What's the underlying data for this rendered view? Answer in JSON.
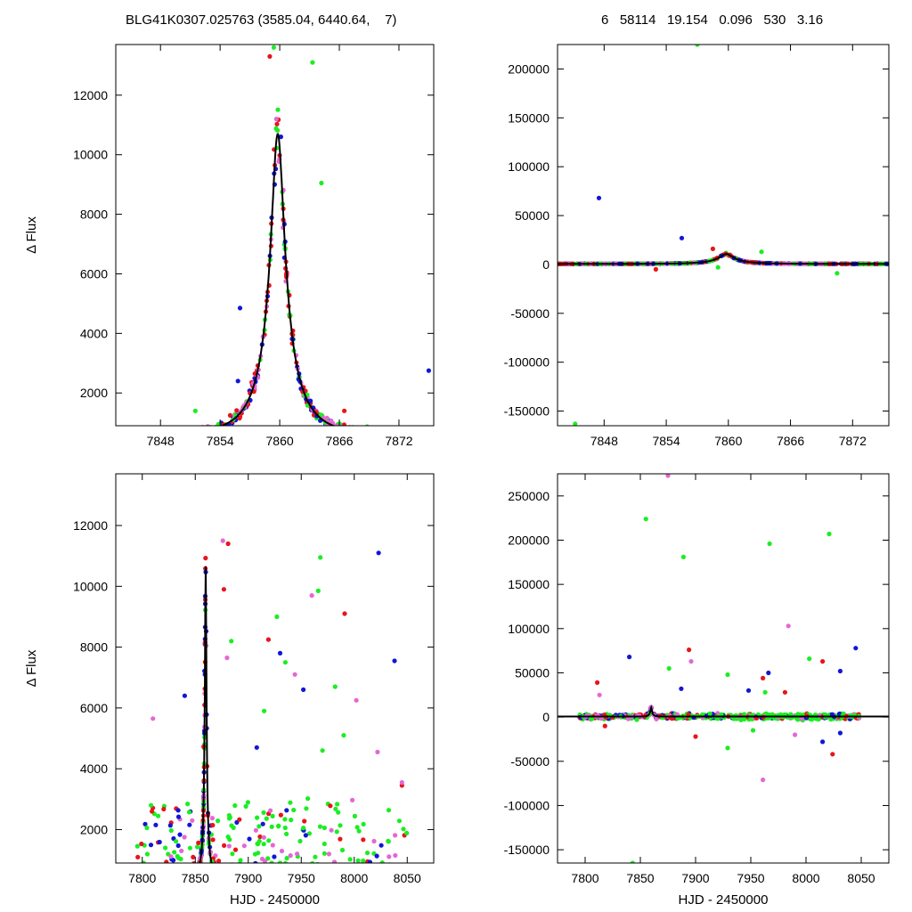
{
  "header": {
    "left": "BLG41K0307.025763 (3585.04, 6440.64,    7)",
    "right": "6   58114   19.154   0.096   530   3.16"
  },
  "colors": {
    "red": "#e8141c",
    "magenta": "#e467d4",
    "green": "#1aee22",
    "blue": "#1216d6",
    "model": "#000000"
  },
  "chart_data": [
    {
      "type": "scatter",
      "panel": "top-left",
      "xlabel": "",
      "ylabel": "Δ Flux",
      "xlim": [
        7843.5,
        7875.5
      ],
      "ylim": [
        900,
        13700
      ],
      "xticks": [
        7848,
        7854,
        7860,
        7866,
        7872
      ],
      "yticks": [
        2000,
        4000,
        6000,
        8000,
        10000,
        12000
      ],
      "grid": false,
      "model": {
        "type": "line",
        "color": "#000000",
        "t0": 7859.8,
        "peak": 10700,
        "tE": 3.8,
        "baseline": 600
      },
      "series_colors": [
        "red",
        "magenta",
        "green",
        "blue"
      ],
      "outliers": [
        {
          "series": "red",
          "x": 7859.0,
          "y": 13300
        },
        {
          "series": "green",
          "x": 7859.4,
          "y": 13600
        },
        {
          "series": "green",
          "x": 7863.3,
          "y": 13100
        },
        {
          "series": "blue",
          "x": 7856.0,
          "y": 4850
        },
        {
          "series": "blue",
          "x": 7855.8,
          "y": 2400
        },
        {
          "series": "green",
          "x": 7851.5,
          "y": 1400
        },
        {
          "series": "green",
          "x": 7864.2,
          "y": 9050
        },
        {
          "series": "blue",
          "x": 7875.0,
          "y": 2750
        },
        {
          "series": "red",
          "x": 7866.5,
          "y": 1400
        }
      ]
    },
    {
      "type": "scatter",
      "panel": "top-right",
      "xlabel": "",
      "ylabel": "",
      "xlim": [
        7843.5,
        7875.5
      ],
      "ylim": [
        -165000,
        225000
      ],
      "xticks": [
        7848,
        7854,
        7860,
        7866,
        7872
      ],
      "yticks": [
        -150000,
        -100000,
        -50000,
        0,
        50000,
        100000,
        150000,
        200000
      ],
      "grid": false,
      "model": {
        "type": "line",
        "color": "#000000",
        "t0": 7859.8,
        "peak": 10700,
        "tE": 3.8,
        "baseline": 600
      },
      "outliers": [
        {
          "series": "green",
          "x": 7857.0,
          "y": 225000
        },
        {
          "series": "blue",
          "x": 7847.5,
          "y": 68000
        },
        {
          "series": "blue",
          "x": 7855.5,
          "y": 27000
        },
        {
          "series": "green",
          "x": 7845.2,
          "y": -163000
        },
        {
          "series": "red",
          "x": 7858.5,
          "y": 16000
        },
        {
          "series": "green",
          "x": 7859.0,
          "y": -3000
        },
        {
          "series": "red",
          "x": 7853.0,
          "y": -5000
        },
        {
          "series": "green",
          "x": 7863.2,
          "y": 13000
        },
        {
          "series": "green",
          "x": 7870.5,
          "y": -9000
        }
      ]
    },
    {
      "type": "scatter",
      "panel": "bottom-left",
      "xlabel": "HJD - 2450000",
      "ylabel": "Δ Flux",
      "xlim": [
        7775,
        8075
      ],
      "ylim": [
        900,
        13700
      ],
      "xticks": [
        7800,
        7850,
        7900,
        7950,
        8000,
        8050
      ],
      "yticks": [
        2000,
        4000,
        6000,
        8000,
        10000,
        12000
      ],
      "grid": false,
      "model": {
        "type": "line",
        "color": "#000000",
        "t0": 7859.8,
        "peak": 10700,
        "tE": 3.8,
        "baseline": 600
      },
      "outliers": [
        {
          "series": "magenta",
          "x": 7810,
          "y": 5650
        },
        {
          "series": "red",
          "x": 7877,
          "y": 9900
        },
        {
          "series": "red",
          "x": 7881,
          "y": 11400
        },
        {
          "series": "magenta",
          "x": 7876,
          "y": 11500
        },
        {
          "series": "green",
          "x": 7884,
          "y": 8200
        },
        {
          "series": "red",
          "x": 7919,
          "y": 8250
        },
        {
          "series": "green",
          "x": 7927,
          "y": 9000
        },
        {
          "series": "blue",
          "x": 7930,
          "y": 7800
        },
        {
          "series": "green",
          "x": 7968,
          "y": 10950
        },
        {
          "series": "green",
          "x": 7966,
          "y": 9850
        },
        {
          "series": "magenta",
          "x": 7960,
          "y": 9700
        },
        {
          "series": "red",
          "x": 7991,
          "y": 9100
        },
        {
          "series": "blue",
          "x": 8023,
          "y": 11100
        },
        {
          "series": "blue",
          "x": 8038,
          "y": 7550
        },
        {
          "series": "magenta",
          "x": 7944,
          "y": 7100
        },
        {
          "series": "green",
          "x": 7935,
          "y": 7500
        },
        {
          "series": "green",
          "x": 7982,
          "y": 6700
        },
        {
          "series": "magenta",
          "x": 8002,
          "y": 6250
        },
        {
          "series": "blue",
          "x": 7952,
          "y": 6600
        },
        {
          "series": "green",
          "x": 7915,
          "y": 5900
        },
        {
          "series": "blue",
          "x": 7840,
          "y": 6400
        },
        {
          "series": "magenta",
          "x": 7880,
          "y": 7650
        },
        {
          "series": "magenta",
          "x": 8022,
          "y": 4550
        },
        {
          "series": "green",
          "x": 7970,
          "y": 4600
        },
        {
          "series": "red",
          "x": 8045,
          "y": 3450
        },
        {
          "series": "magenta",
          "x": 8045,
          "y": 3550
        },
        {
          "series": "blue",
          "x": 7908,
          "y": 4700
        },
        {
          "series": "green",
          "x": 7990,
          "y": 5100
        }
      ]
    },
    {
      "type": "scatter",
      "panel": "bottom-right",
      "xlabel": "HJD - 2450000",
      "ylabel": "",
      "xlim": [
        7775,
        8075
      ],
      "ylim": [
        -165000,
        275000
      ],
      "xticks": [
        7800,
        7850,
        7900,
        7950,
        8000,
        8050
      ],
      "yticks": [
        -150000,
        -100000,
        -50000,
        0,
        50000,
        100000,
        150000,
        200000,
        250000
      ],
      "grid": false,
      "model": {
        "type": "line",
        "color": "#000000",
        "t0": 7859.8,
        "peak": 10700,
        "tE": 3.8,
        "baseline": 600
      },
      "outliers": [
        {
          "series": "magenta",
          "x": 7875,
          "y": 273000
        },
        {
          "series": "green",
          "x": 7855,
          "y": 224000
        },
        {
          "series": "green",
          "x": 8021,
          "y": 207000
        },
        {
          "series": "green",
          "x": 7967,
          "y": 196000
        },
        {
          "series": "green",
          "x": 7889,
          "y": 181000
        },
        {
          "series": "magenta",
          "x": 7984,
          "y": 103000
        },
        {
          "series": "blue",
          "x": 8045,
          "y": 78000
        },
        {
          "series": "red",
          "x": 7894,
          "y": 76000
        },
        {
          "series": "blue",
          "x": 7840,
          "y": 68000
        },
        {
          "series": "green",
          "x": 8003,
          "y": 66000
        },
        {
          "series": "red",
          "x": 8015,
          "y": 63000
        },
        {
          "series": "magenta",
          "x": 7896,
          "y": 63000
        },
        {
          "series": "green",
          "x": 7876,
          "y": 55000
        },
        {
          "series": "blue",
          "x": 8031,
          "y": 52000
        },
        {
          "series": "blue",
          "x": 7966,
          "y": 50000
        },
        {
          "series": "green",
          "x": 7929,
          "y": 48000
        },
        {
          "series": "red",
          "x": 7811,
          "y": 39000
        },
        {
          "series": "blue",
          "x": 7887,
          "y": 32000
        },
        {
          "series": "blue",
          "x": 7948,
          "y": 30000
        },
        {
          "series": "red",
          "x": 7981,
          "y": 28000
        },
        {
          "series": "green",
          "x": 7963,
          "y": 28000
        },
        {
          "series": "magenta",
          "x": 7813,
          "y": 25000
        },
        {
          "series": "red",
          "x": 7961,
          "y": 44000
        },
        {
          "series": "green",
          "x": 7843,
          "y": -165000
        },
        {
          "series": "magenta",
          "x": 7961,
          "y": -71000
        },
        {
          "series": "red",
          "x": 8024,
          "y": -42000
        },
        {
          "series": "green",
          "x": 7929,
          "y": -35000
        },
        {
          "series": "blue",
          "x": 8015,
          "y": -28000
        },
        {
          "series": "red",
          "x": 7900,
          "y": -22000
        },
        {
          "series": "magenta",
          "x": 7990,
          "y": -20000
        },
        {
          "series": "blue",
          "x": 8031,
          "y": -18000
        },
        {
          "series": "green",
          "x": 7952,
          "y": -15000
        },
        {
          "series": "red",
          "x": 7818,
          "y": -10000
        }
      ]
    }
  ]
}
